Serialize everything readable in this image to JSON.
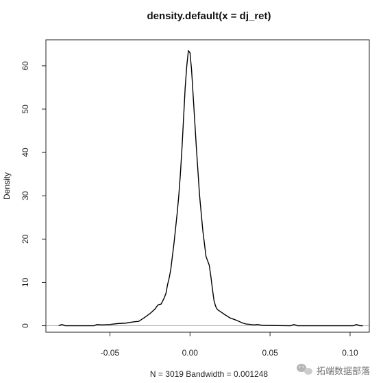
{
  "chart_data": {
    "type": "line",
    "title": "density.default(x = dj_ret)",
    "xlabel": "N = 3019   Bandwidth = 0.001248",
    "ylabel": "Density",
    "xlim": [
      -0.09,
      0.112
    ],
    "ylim": [
      -1.5,
      66
    ],
    "x_ticks": [
      -0.05,
      0.0,
      0.05,
      0.1
    ],
    "x_tick_labels": [
      "-0.05",
      "0.00",
      "0.05",
      "0.10"
    ],
    "y_ticks": [
      0,
      10,
      20,
      30,
      40,
      50,
      60
    ],
    "y_tick_labels": [
      "0",
      "10",
      "20",
      "30",
      "40",
      "50",
      "60"
    ],
    "baseline": 0,
    "grid": false,
    "legend": "none",
    "line_color": "#000000",
    "baseline_color": "#b0b0b0",
    "series": [
      {
        "x": [
          -0.082,
          -0.08,
          -0.078,
          -0.06,
          -0.058,
          -0.055,
          -0.05,
          -0.045,
          -0.04,
          -0.035,
          -0.032,
          -0.03,
          -0.028,
          -0.025,
          -0.022,
          -0.02,
          -0.018,
          -0.016,
          -0.015,
          -0.014,
          -0.013,
          -0.012,
          -0.011,
          -0.01,
          -0.009,
          -0.008,
          -0.007,
          -0.006,
          -0.005,
          -0.004,
          -0.003,
          -0.002,
          -0.001,
          0.0,
          0.001,
          0.002,
          0.003,
          0.004,
          0.005,
          0.006,
          0.007,
          0.008,
          0.009,
          0.01,
          0.011,
          0.012,
          0.013,
          0.014,
          0.015,
          0.016,
          0.017,
          0.018,
          0.02,
          0.022,
          0.025,
          0.028,
          0.03,
          0.033,
          0.035,
          0.038,
          0.04,
          0.042,
          0.045,
          0.05,
          0.063,
          0.065,
          0.067,
          0.102,
          0.104,
          0.106,
          0.108
        ],
        "y": [
          0,
          0.3,
          0,
          0,
          0.3,
          0.2,
          0.3,
          0.5,
          0.6,
          0.9,
          1.0,
          1.5,
          2.0,
          2.8,
          3.8,
          4.8,
          5.0,
          6.5,
          7.5,
          9.5,
          11.0,
          13.0,
          16.0,
          19.0,
          22.5,
          26.0,
          30.0,
          35.0,
          41.0,
          48.0,
          55.0,
          60.0,
          63.5,
          63.0,
          59.0,
          53.0,
          47.0,
          41.0,
          35.5,
          30.0,
          26.0,
          22.0,
          19.0,
          16.0,
          15.0,
          14.0,
          11.5,
          8.5,
          5.8,
          4.5,
          3.8,
          3.5,
          3.0,
          2.5,
          1.8,
          1.4,
          1.1,
          0.6,
          0.4,
          0.3,
          0.2,
          0.3,
          0.1,
          0.05,
          0,
          0.3,
          0,
          0,
          0.3,
          0,
          0
        ]
      }
    ]
  },
  "watermark": {
    "text": "拓端数据部落",
    "icon": "wechat-icon"
  }
}
